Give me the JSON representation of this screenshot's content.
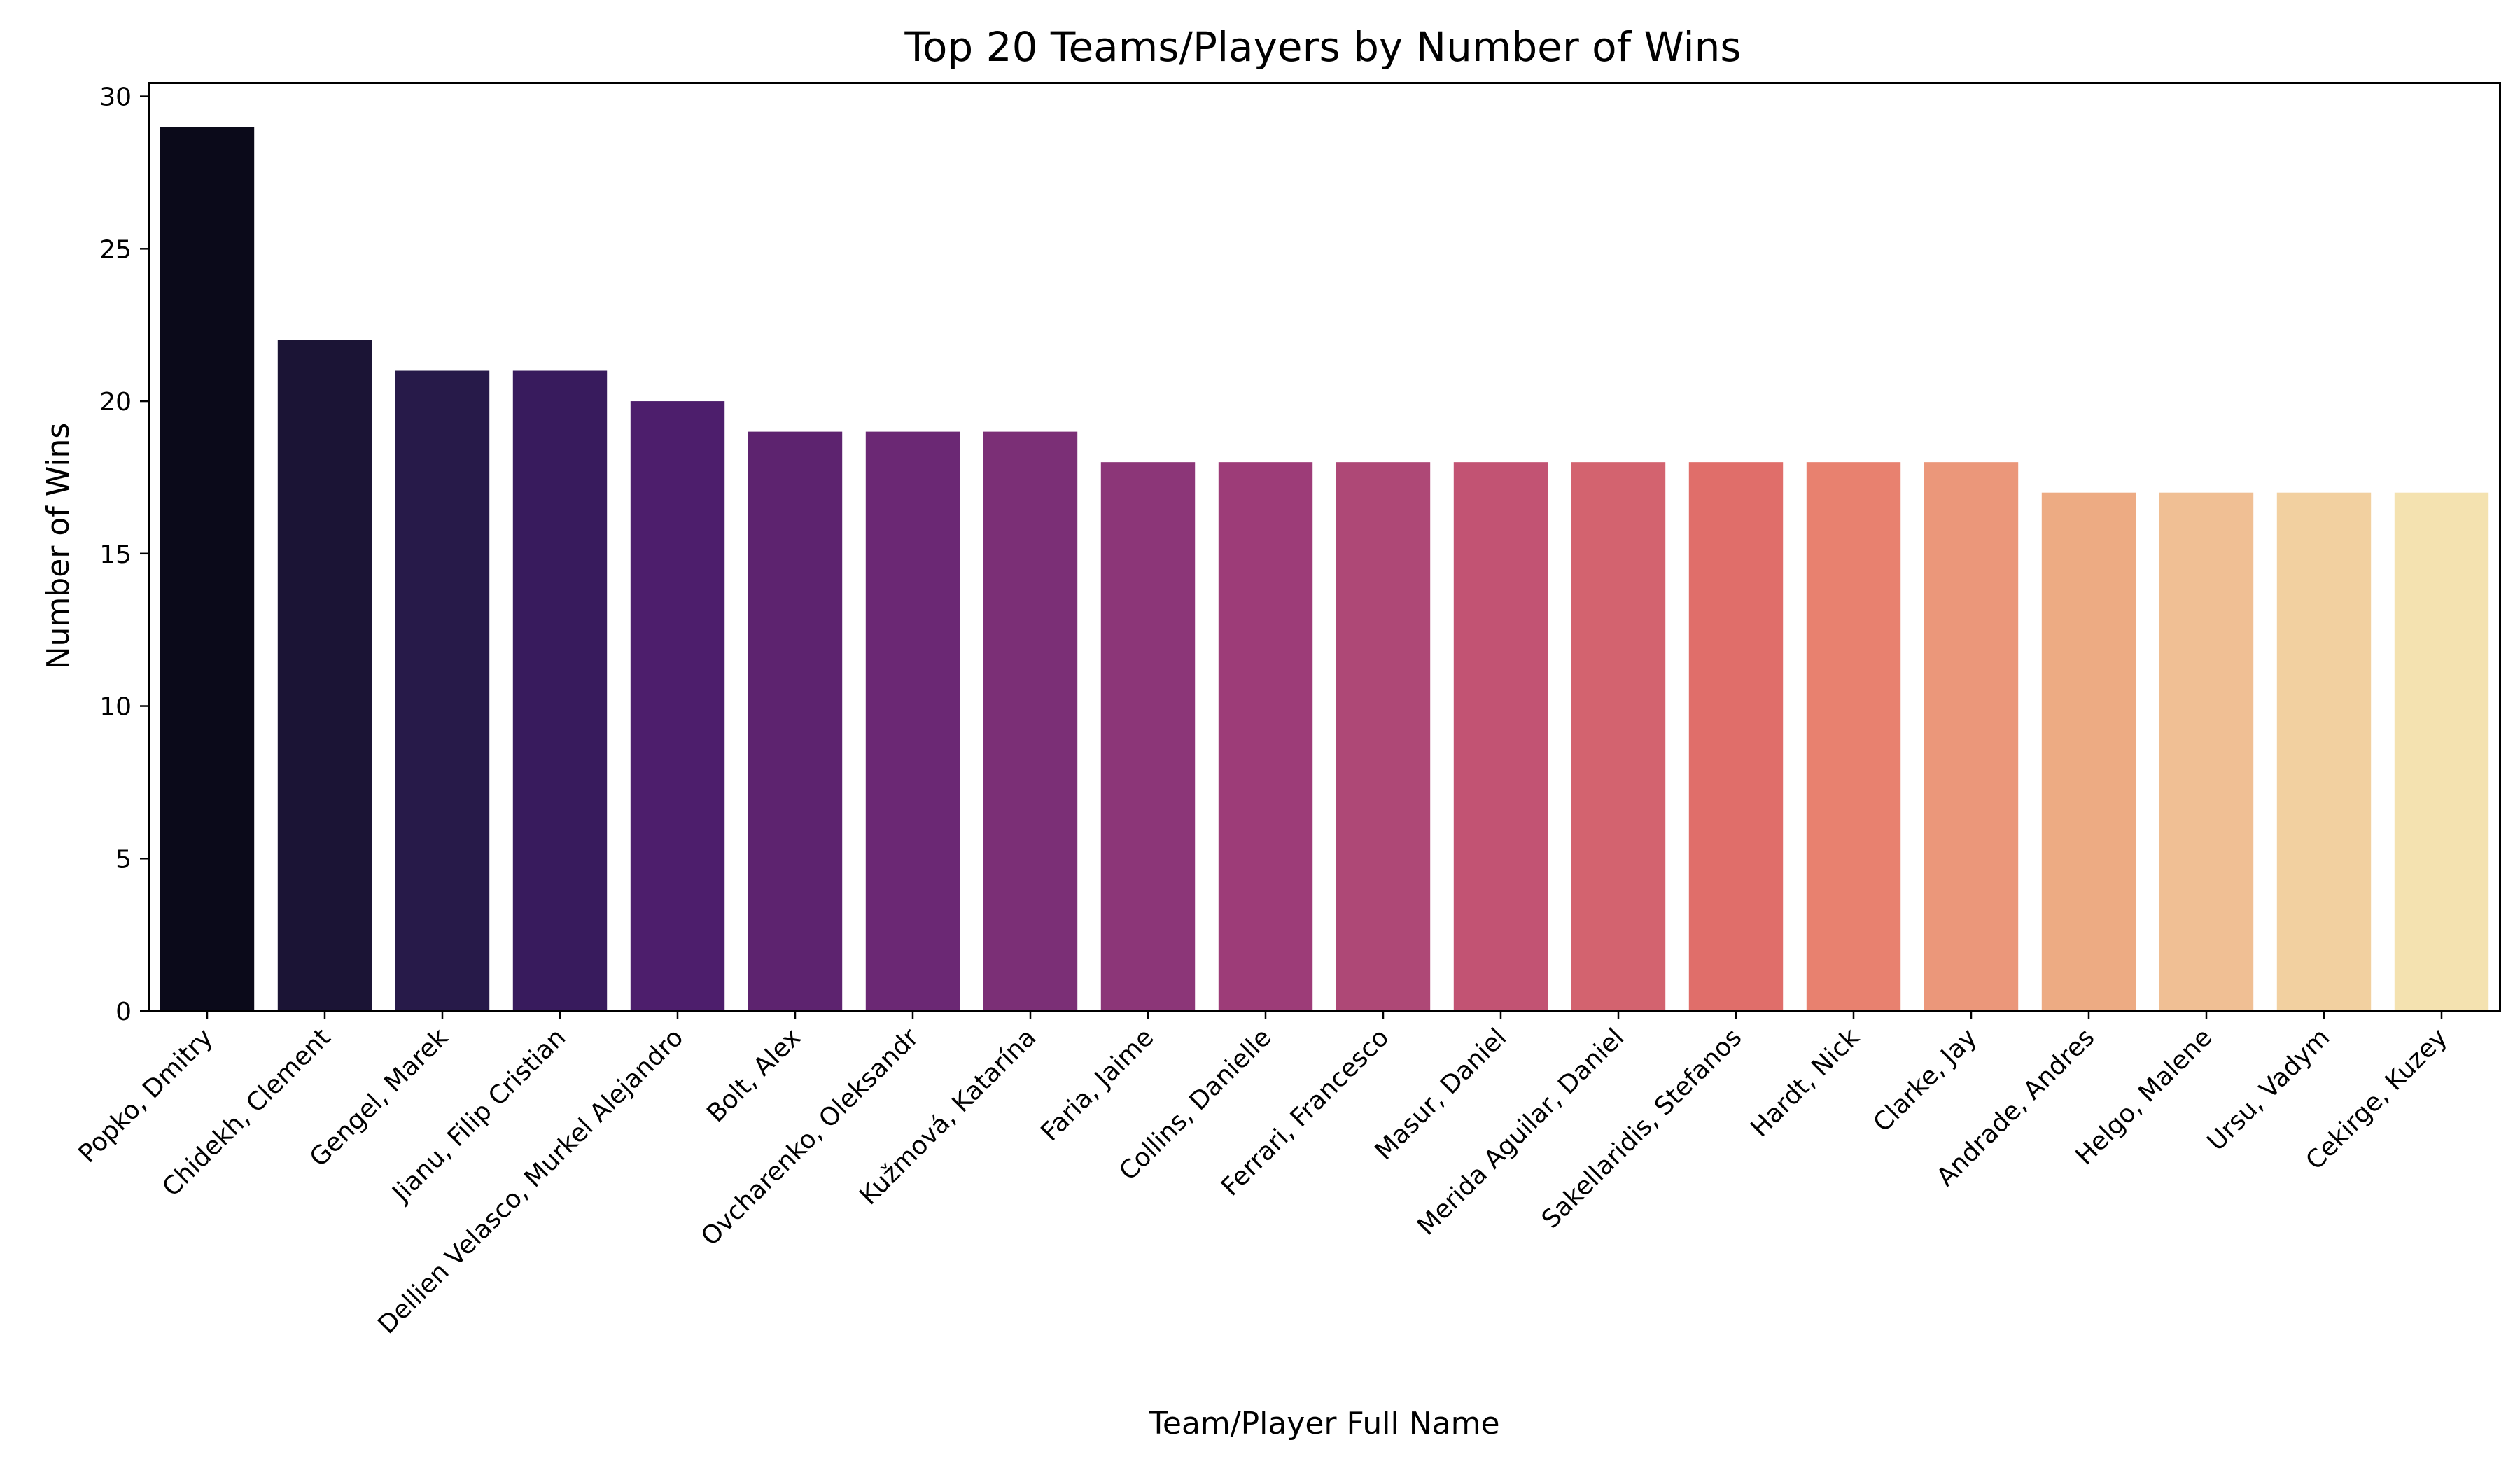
{
  "chart_data": {
    "type": "bar",
    "title": "Top 20 Teams/Players by Number of Wins",
    "xlabel": "Team/Player Full Name",
    "ylabel": "Number of Wins",
    "ylim": [
      0,
      30.45
    ],
    "yticks": [
      0,
      5,
      10,
      15,
      20,
      25,
      30
    ],
    "grid": false,
    "legend": "none",
    "categories": [
      "Popko, Dmitry",
      "Chidekh, Clement",
      "Gengel, Marek",
      "Jianu, Filip Cristian",
      "Dellien Velasco, Murkel Alejandro",
      "Bolt, Alex",
      "Ovcharenko, Oleksandr",
      "Kužmová, Katarína",
      "Faria, Jaime",
      "Collins, Danielle",
      "Ferrari, Francesco",
      "Masur, Daniel",
      "Merida Aguilar, Daniel",
      "Sakellaridis, Stefanos",
      "Hardt, Nick",
      "Clarke, Jay",
      "Andrade, Andres",
      "Helgo, Malene",
      "Ursu, Vadym",
      "Cekirge, Kuzey"
    ],
    "values": [
      29,
      22,
      21,
      21,
      20,
      19,
      19,
      19,
      18,
      18,
      18,
      18,
      18,
      18,
      18,
      18,
      17,
      17,
      17,
      17
    ],
    "colors": [
      "#0b0a1a",
      "#1b1435",
      "#271a49",
      "#381b5d",
      "#4d1e6c",
      "#5d236f",
      "#6b2874",
      "#7b2f76",
      "#8c3678",
      "#9d3c78",
      "#ae4876",
      "#c25373",
      "#d3636f",
      "#e06e6a",
      "#e8816f",
      "#eb977a",
      "#edab83",
      "#f0bf94",
      "#f2d0a0",
      "#f4e2b0"
    ]
  }
}
